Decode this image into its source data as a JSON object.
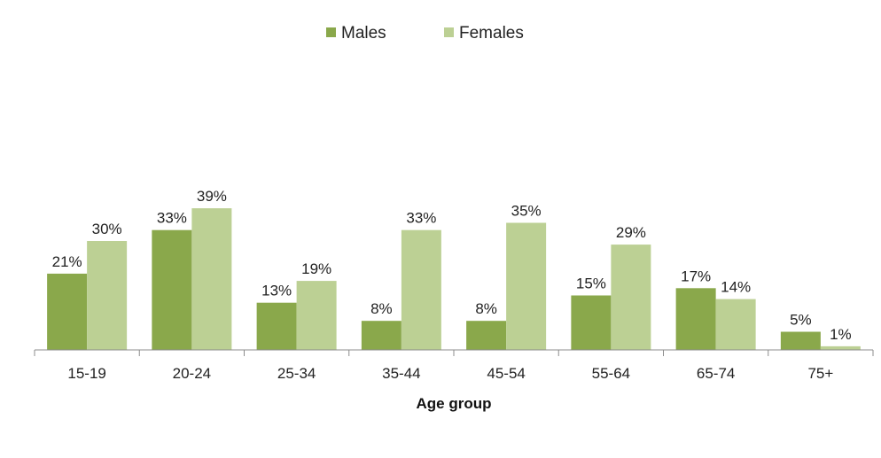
{
  "chart_data": {
    "type": "bar",
    "title": "",
    "xlabel": "Age group",
    "ylabel": "",
    "categories": [
      "15-19",
      "20-24",
      "25-34",
      "35-44",
      "45-54",
      "55-64",
      "65-74",
      "75+"
    ],
    "series": [
      {
        "name": "Males",
        "color": "#8aa84b",
        "values": [
          21,
          33,
          13,
          8,
          8,
          15,
          17,
          5
        ],
        "labels": [
          "21%",
          "33%",
          "13%",
          "8%",
          "8%",
          "15%",
          "17%",
          "5%"
        ]
      },
      {
        "name": "Females",
        "color": "#bcd094",
        "values": [
          30,
          39,
          19,
          33,
          35,
          29,
          14,
          1
        ],
        "labels": [
          "30%",
          "39%",
          "19%",
          "33%",
          "35%",
          "29%",
          "14%",
          "1%"
        ]
      }
    ],
    "ylim": [
      0,
      100
    ],
    "unit": "%",
    "grid": false,
    "legend_position": "top-center"
  }
}
